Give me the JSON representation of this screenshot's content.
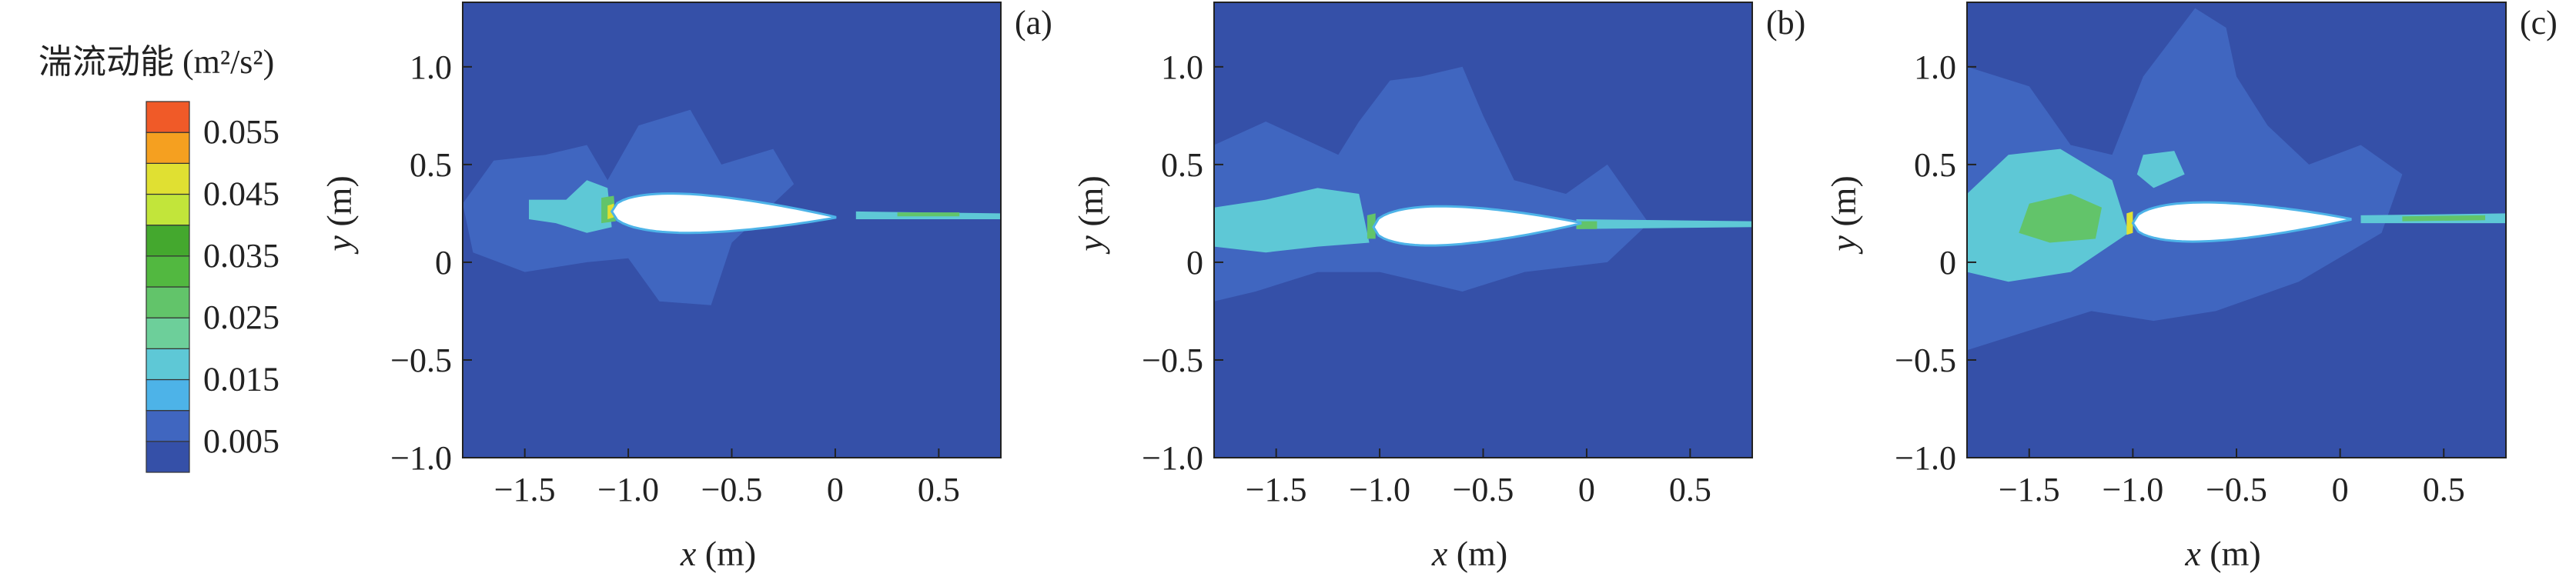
{
  "colorbar": {
    "title": "湍流动能 (m²/s²)",
    "ticks": [
      "0.055",
      "0.045",
      "0.035",
      "0.025",
      "0.015",
      "0.005"
    ],
    "tick_values": [
      0.055,
      0.045,
      0.035,
      0.025,
      0.015,
      0.005
    ],
    "levels": [
      0.0,
      0.005,
      0.01,
      0.015,
      0.02,
      0.025,
      0.03,
      0.035,
      0.04,
      0.045,
      0.05,
      0.055,
      0.06
    ],
    "colors": [
      "#3550a8",
      "#4066c0",
      "#4db3e8",
      "#5ec8d6",
      "#6dcf9a",
      "#62c46a",
      "#52b840",
      "#44a82e",
      "#c2e53a",
      "#e0e032",
      "#f5a020",
      "#f05a28",
      "#d81e1e"
    ]
  },
  "chart_data": [
    {
      "type": "contour",
      "panel_label": "(a)",
      "xlabel_var": "x",
      "xlabel_unit": " (m)",
      "ylabel_var": "y",
      "ylabel_unit": " (m)",
      "xlim": [
        -1.8,
        0.8
      ],
      "ylim": [
        -1.0,
        1.33
      ],
      "xticks": [
        -1.5,
        -1.0,
        -0.5,
        0,
        0.5
      ],
      "xticklabels": [
        "−1.5",
        "−1.0",
        "−0.5",
        "0",
        "0.5"
      ],
      "yticks": [
        -1.0,
        -0.5,
        0,
        0.5,
        1.0
      ],
      "yticklabels": [
        "−1.0",
        "−0.5",
        "0",
        "0.5",
        "1.0"
      ],
      "airfoil": {
        "leading_edge": [
          -1.08,
          0.26
        ],
        "trailing_edge": [
          0.0,
          0.23
        ],
        "thickness": 0.2
      },
      "regions": [
        {
          "level": 0.005,
          "points": [
            [
              -1.4,
              0.55
            ],
            [
              -1.2,
              0.6
            ],
            [
              -1.1,
              0.42
            ],
            [
              -0.95,
              0.7
            ],
            [
              -0.7,
              0.78
            ],
            [
              -0.55,
              0.5
            ],
            [
              -0.3,
              0.58
            ],
            [
              -0.2,
              0.4
            ],
            [
              -0.5,
              0.1
            ],
            [
              -0.6,
              -0.22
            ],
            [
              -0.85,
              -0.2
            ],
            [
              -1.0,
              0.02
            ],
            [
              -1.2,
              0.0
            ],
            [
              -1.5,
              -0.05
            ],
            [
              -1.75,
              0.05
            ],
            [
              -1.8,
              0.3
            ],
            [
              -1.65,
              0.52
            ]
          ]
        },
        {
          "level": 0.015,
          "points": [
            [
              -1.48,
              0.32
            ],
            [
              -1.3,
              0.32
            ],
            [
              -1.2,
              0.42
            ],
            [
              -1.1,
              0.38
            ],
            [
              -1.08,
              0.18
            ],
            [
              -1.2,
              0.15
            ],
            [
              -1.35,
              0.2
            ],
            [
              -1.48,
              0.22
            ]
          ]
        },
        {
          "level": 0.025,
          "points": [
            [
              -1.13,
              0.33
            ],
            [
              -1.07,
              0.34
            ],
            [
              -1.06,
              0.21
            ],
            [
              -1.13,
              0.2
            ]
          ]
        },
        {
          "level": 0.045,
          "points": [
            [
              -1.1,
              0.29
            ],
            [
              -1.07,
              0.3
            ],
            [
              -1.07,
              0.23
            ],
            [
              -1.1,
              0.22
            ]
          ]
        },
        {
          "level": 0.015,
          "points": [
            [
              0.1,
              0.26
            ],
            [
              0.8,
              0.25
            ],
            [
              0.8,
              0.22
            ],
            [
              0.1,
              0.22
            ]
          ]
        },
        {
          "level": 0.025,
          "points": [
            [
              0.3,
              0.255
            ],
            [
              0.6,
              0.255
            ],
            [
              0.6,
              0.235
            ],
            [
              0.3,
              0.235
            ]
          ]
        }
      ]
    },
    {
      "type": "contour",
      "panel_label": "(b)",
      "xlabel_var": "x",
      "xlabel_unit": " (m)",
      "ylabel_var": "y",
      "ylabel_unit": " (m)",
      "xlim": [
        -1.8,
        0.8
      ],
      "ylim": [
        -1.0,
        1.33
      ],
      "xticks": [
        -1.5,
        -1.0,
        -0.5,
        0,
        0.5
      ],
      "xticklabels": [
        "−1.5",
        "−1.0",
        "−0.5",
        "0",
        "0.5"
      ],
      "yticks": [
        -1.0,
        -0.5,
        0,
        0.5,
        1.0
      ],
      "yticklabels": [
        "−1.0",
        "−0.5",
        "0",
        "0.5",
        "1.0"
      ],
      "airfoil": {
        "leading_edge": [
          -1.03,
          0.18
        ],
        "trailing_edge": [
          -0.03,
          0.2
        ],
        "thickness": 0.2
      },
      "regions": [
        {
          "level": 0.005,
          "points": [
            [
              -1.8,
              0.6
            ],
            [
              -1.55,
              0.72
            ],
            [
              -1.2,
              0.55
            ],
            [
              -1.1,
              0.72
            ],
            [
              -0.95,
              0.93
            ],
            [
              -0.8,
              0.95
            ],
            [
              -0.6,
              1.0
            ],
            [
              -0.5,
              0.75
            ],
            [
              -0.35,
              0.42
            ],
            [
              -0.1,
              0.35
            ],
            [
              0.1,
              0.5
            ],
            [
              0.2,
              0.35
            ],
            [
              0.3,
              0.2
            ],
            [
              0.1,
              0.0
            ],
            [
              -0.3,
              -0.05
            ],
            [
              -0.6,
              -0.15
            ],
            [
              -0.8,
              -0.1
            ],
            [
              -1.0,
              -0.05
            ],
            [
              -1.3,
              -0.05
            ],
            [
              -1.6,
              -0.15
            ],
            [
              -1.8,
              -0.2
            ]
          ]
        },
        {
          "level": 0.015,
          "points": [
            [
              -1.8,
              0.28
            ],
            [
              -1.55,
              0.32
            ],
            [
              -1.3,
              0.38
            ],
            [
              -1.1,
              0.35
            ],
            [
              -1.05,
              0.1
            ],
            [
              -1.3,
              0.08
            ],
            [
              -1.55,
              0.05
            ],
            [
              -1.8,
              0.08
            ]
          ]
        },
        {
          "level": 0.025,
          "points": [
            [
              -1.06,
              0.24
            ],
            [
              -1.02,
              0.25
            ],
            [
              -1.02,
              0.12
            ],
            [
              -1.06,
              0.12
            ]
          ]
        },
        {
          "level": 0.015,
          "points": [
            [
              -0.05,
              0.22
            ],
            [
              0.8,
              0.21
            ],
            [
              0.8,
              0.18
            ],
            [
              -0.05,
              0.17
            ]
          ]
        },
        {
          "level": 0.025,
          "points": [
            [
              -0.05,
              0.21
            ],
            [
              0.05,
              0.21
            ],
            [
              0.05,
              0.17
            ],
            [
              -0.05,
              0.17
            ]
          ]
        }
      ]
    },
    {
      "type": "contour",
      "panel_label": "(c)",
      "xlabel_var": "x",
      "xlabel_unit": " (m)",
      "ylabel_var": "y",
      "ylabel_unit": " (m)",
      "xlim": [
        -1.8,
        0.8
      ],
      "ylim": [
        -1.0,
        1.33
      ],
      "xticks": [
        -1.5,
        -1.0,
        -0.5,
        0,
        0.5
      ],
      "xticklabels": [
        "−1.5",
        "−1.0",
        "−0.5",
        "0",
        "0.5"
      ],
      "yticks": [
        -1.0,
        -0.5,
        0,
        0.5,
        1.0
      ],
      "yticklabels": [
        "−1.0",
        "−0.5",
        "0",
        "0.5",
        "1.0"
      ],
      "airfoil": {
        "leading_edge": [
          -1.0,
          0.2
        ],
        "trailing_edge": [
          0.05,
          0.22
        ],
        "thickness": 0.2
      },
      "regions": [
        {
          "level": 0.005,
          "points": [
            [
              -1.8,
              1.0
            ],
            [
              -1.5,
              0.9
            ],
            [
              -1.3,
              0.6
            ],
            [
              -1.1,
              0.55
            ],
            [
              -0.95,
              0.95
            ],
            [
              -0.7,
              1.3
            ],
            [
              -0.55,
              1.2
            ],
            [
              -0.5,
              0.95
            ],
            [
              -0.35,
              0.7
            ],
            [
              -0.15,
              0.5
            ],
            [
              0.1,
              0.6
            ],
            [
              0.3,
              0.45
            ],
            [
              0.2,
              0.15
            ],
            [
              -0.2,
              -0.1
            ],
            [
              -0.6,
              -0.25
            ],
            [
              -0.9,
              -0.3
            ],
            [
              -1.2,
              -0.25
            ],
            [
              -1.5,
              -0.35
            ],
            [
              -1.8,
              -0.45
            ]
          ]
        },
        {
          "level": 0.015,
          "points": [
            [
              -1.8,
              0.35
            ],
            [
              -1.6,
              0.55
            ],
            [
              -1.35,
              0.58
            ],
            [
              -1.1,
              0.42
            ],
            [
              -1.02,
              0.15
            ],
            [
              -1.3,
              -0.05
            ],
            [
              -1.6,
              -0.1
            ],
            [
              -1.8,
              -0.05
            ]
          ]
        },
        {
          "level": 0.025,
          "points": [
            [
              -1.5,
              0.3
            ],
            [
              -1.3,
              0.35
            ],
            [
              -1.15,
              0.28
            ],
            [
              -1.18,
              0.12
            ],
            [
              -1.4,
              0.1
            ],
            [
              -1.55,
              0.15
            ]
          ]
        },
        {
          "level": 0.015,
          "points": [
            [
              -0.95,
              0.55
            ],
            [
              -0.8,
              0.57
            ],
            [
              -0.75,
              0.45
            ],
            [
              -0.9,
              0.38
            ],
            [
              -0.98,
              0.45
            ]
          ]
        },
        {
          "level": 0.045,
          "points": [
            [
              -1.03,
              0.25
            ],
            [
              -1.0,
              0.26
            ],
            [
              -1.0,
              0.15
            ],
            [
              -1.03,
              0.14
            ]
          ]
        },
        {
          "level": 0.015,
          "points": [
            [
              0.1,
              0.24
            ],
            [
              0.8,
              0.25
            ],
            [
              0.8,
              0.2
            ],
            [
              0.1,
              0.2
            ]
          ]
        },
        {
          "level": 0.025,
          "points": [
            [
              0.3,
              0.235
            ],
            [
              0.7,
              0.24
            ],
            [
              0.7,
              0.215
            ],
            [
              0.3,
              0.21
            ]
          ]
        }
      ]
    }
  ]
}
